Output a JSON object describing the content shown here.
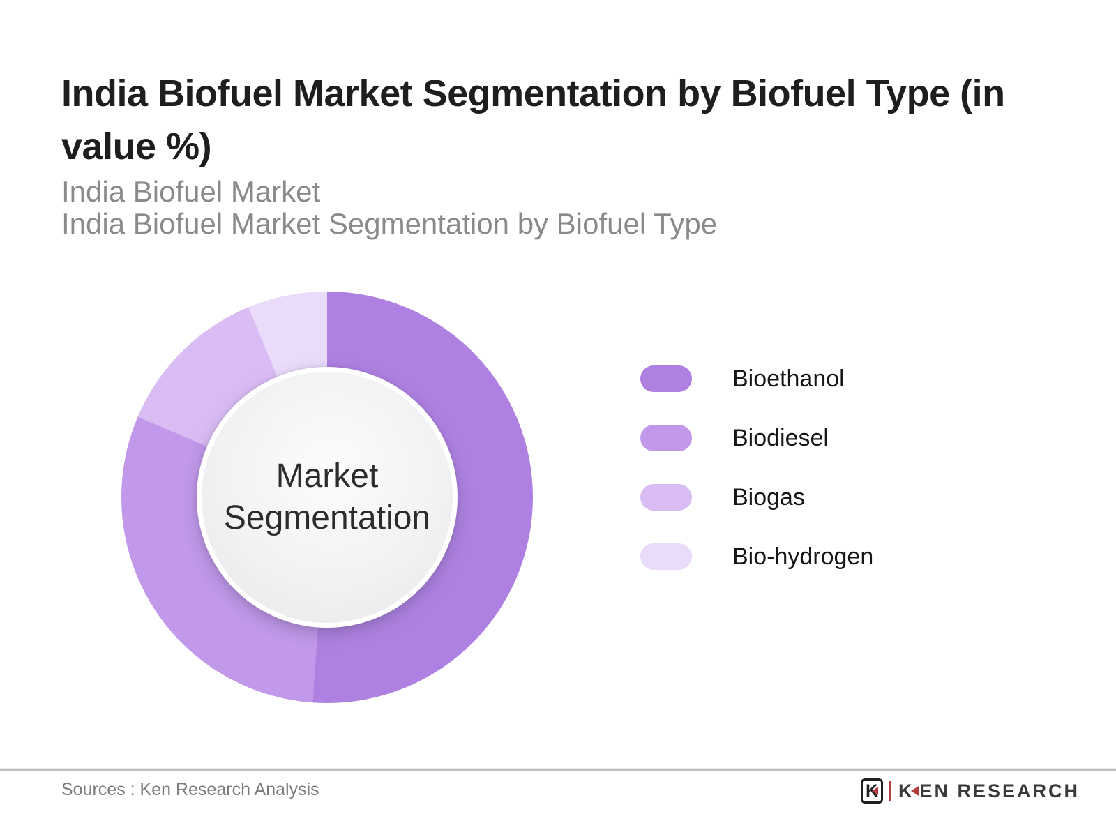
{
  "header": {
    "title_lines": [
      "India Biofuel Market Segmentation by Biofuel Type (in",
      "value %)"
    ],
    "title_full": "India Biofuel Market Segmentation by Biofuel Type (in value %)",
    "subtitle_lines": [
      "India Biofuel Market",
      "India Biofuel Market Segmentation by Biofuel Type"
    ]
  },
  "chart_data": {
    "type": "pie",
    "donut": true,
    "title": "India Biofuel Market Segmentation by Biofuel Type (in value %)",
    "center_label": "Market Segmentation",
    "legend_position": "right",
    "categories": [
      "Bioethanol",
      "Biodiesel",
      "Biogas",
      "Bio-hydrogen"
    ],
    "values": [
      51,
      30,
      12.5,
      6.5
    ],
    "segments": [
      {
        "label": "Bioethanol",
        "value_pct": 51,
        "color": "#ae80e2",
        "start_deg": 0,
        "end_deg": 184
      },
      {
        "label": "Biodiesel",
        "value_pct": 30,
        "color": "#c198ea",
        "start_deg": 184,
        "end_deg": 293
      },
      {
        "label": "Biogas",
        "value_pct": 12.5,
        "color": "#d9bcf3",
        "start_deg": 293,
        "end_deg": 337.5
      },
      {
        "label": "Bio-hydrogen",
        "value_pct": 6.5,
        "color": "#e9dbf9",
        "start_deg": 337.5,
        "end_deg": 360
      }
    ]
  },
  "footer": {
    "source_text": "Sources : Ken Research Analysis",
    "logo": {
      "emblem_letter": "K",
      "brand_k": "K",
      "brand_rest": "EN RESEARCH",
      "brand_full": "KEN RESEARCH",
      "accent_color": "#b23c40",
      "text_color": "#3a3a3a"
    }
  }
}
